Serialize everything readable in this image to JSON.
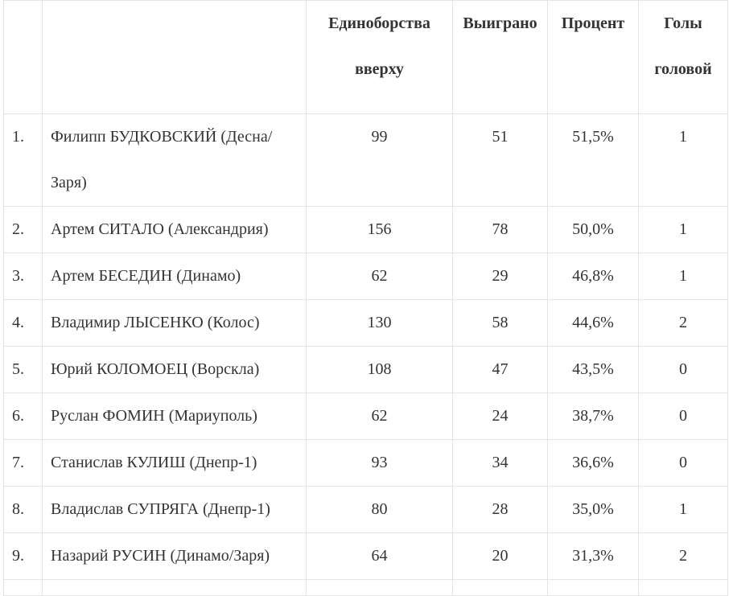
{
  "table": {
    "headers": {
      "rank": "",
      "player": "",
      "duels": "Единоборства вверху",
      "won": "Выиграно",
      "percent": "Процент",
      "goals": "Голы головой"
    },
    "rows": [
      {
        "rank": "1.",
        "player": "Филипп БУДКОВСКИЙ (Десна/Заря)",
        "duels": "99",
        "won": "51",
        "percent": "51,5%",
        "goals": "1"
      },
      {
        "rank": "2.",
        "player": "Артем СИТАЛО (Александрия)",
        "duels": "156",
        "won": "78",
        "percent": "50,0%",
        "goals": "1"
      },
      {
        "rank": "3.",
        "player": "Артем БЕСЕДИН (Динамо)",
        "duels": "62",
        "won": "29",
        "percent": "46,8%",
        "goals": "1"
      },
      {
        "rank": "4.",
        "player": "Владимир ЛЫСЕНКО (Колос)",
        "duels": "130",
        "won": "58",
        "percent": "44,6%",
        "goals": "2"
      },
      {
        "rank": "5.",
        "player": "Юрий КОЛОМОЕЦ (Ворскла)",
        "duels": "108",
        "won": "47",
        "percent": "43,5%",
        "goals": "0"
      },
      {
        "rank": "6.",
        "player": "Руслан ФОМИН (Мариуполь)",
        "duels": "62",
        "won": "24",
        "percent": "38,7%",
        "goals": "0"
      },
      {
        "rank": "7.",
        "player": "Станислав КУЛИШ (Днепр-1)",
        "duels": "93",
        "won": "34",
        "percent": "36,6%",
        "goals": "0"
      },
      {
        "rank": "8.",
        "player": "Владислав СУПРЯГА (Днепр-1)",
        "duels": "80",
        "won": "28",
        "percent": "35,0%",
        "goals": "1"
      },
      {
        "rank": "9.",
        "player": "Назарий РУСИН (Динамо/Заря)",
        "duels": "64",
        "won": "20",
        "percent": "31,3%",
        "goals": "2"
      }
    ]
  }
}
